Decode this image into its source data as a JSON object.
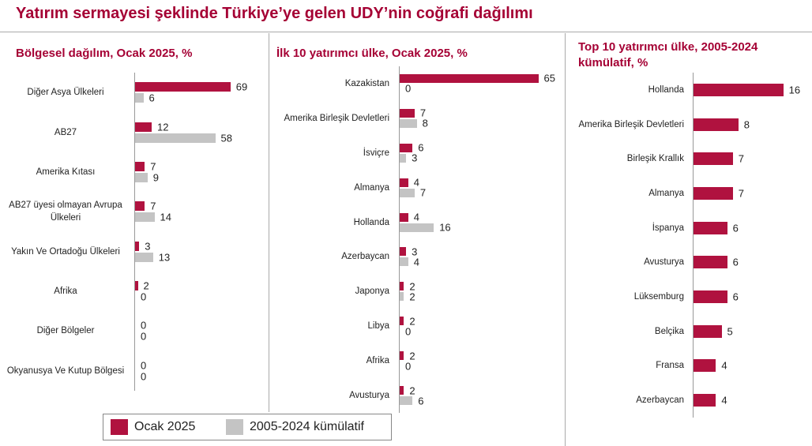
{
  "title": "Yatırım sermayesi şeklinde Türkiye’ye gelen UDY’nin coğrafi dağılımı",
  "chart_data": [
    {
      "type": "hbar",
      "title": "Bölgesel dağılım, Ocak 2025, %",
      "categories": [
        "Diğer Asya Ülkeleri",
        "AB27",
        "Amerika Kıtası",
        "AB27 üyesi olmayan Avrupa Ülkeleri",
        "Yakın Ve Ortadoğu Ülkeleri",
        "Afrika",
        "Diğer Bölgeler",
        "Okyanusya Ve Kutup Bölgesi"
      ],
      "series": [
        {
          "name": "Ocak 2025",
          "color": "#b0123f",
          "values": [
            69,
            12,
            7,
            7,
            3,
            2,
            0,
            0
          ]
        },
        {
          "name": "2005-2024 kümülatif",
          "color": "#c4c4c4",
          "values": [
            6,
            58,
            9,
            14,
            13,
            0,
            0,
            0
          ]
        }
      ]
    },
    {
      "type": "hbar",
      "title": "İlk 10 yatırımcı ülke, Ocak 2025, %",
      "categories": [
        "Kazakistan",
        "Amerika Birleşik Devletleri",
        "İsviçre",
        "Almanya",
        "Hollanda",
        "Azerbaycan",
        "Japonya",
        "Libya",
        "Afrika",
        "Avusturya"
      ],
      "series": [
        {
          "color": "#b0123f",
          "values": [
            65,
            7,
            6,
            4,
            4,
            3,
            2,
            2,
            2,
            2
          ]
        },
        {
          "color": "#c4c4c4",
          "values": [
            0,
            8,
            3,
            7,
            16,
            4,
            2,
            0,
            0,
            6
          ]
        }
      ]
    },
    {
      "type": "hbar",
      "title": "Top 10 yatırımcı ülke, 2005-2024 kümülatif, %",
      "categories": [
        "Hollanda",
        "Amerika Birleşik Devletleri",
        "Birleşik Krallık",
        "Almanya",
        "İspanya",
        "Avusturya",
        "Lüksemburg",
        "Belçika",
        "Fransa",
        "Azerbaycan"
      ],
      "color": "#b0123f",
      "values": [
        16,
        8,
        7,
        7,
        6,
        6,
        6,
        5,
        4,
        4
      ]
    }
  ]
}
